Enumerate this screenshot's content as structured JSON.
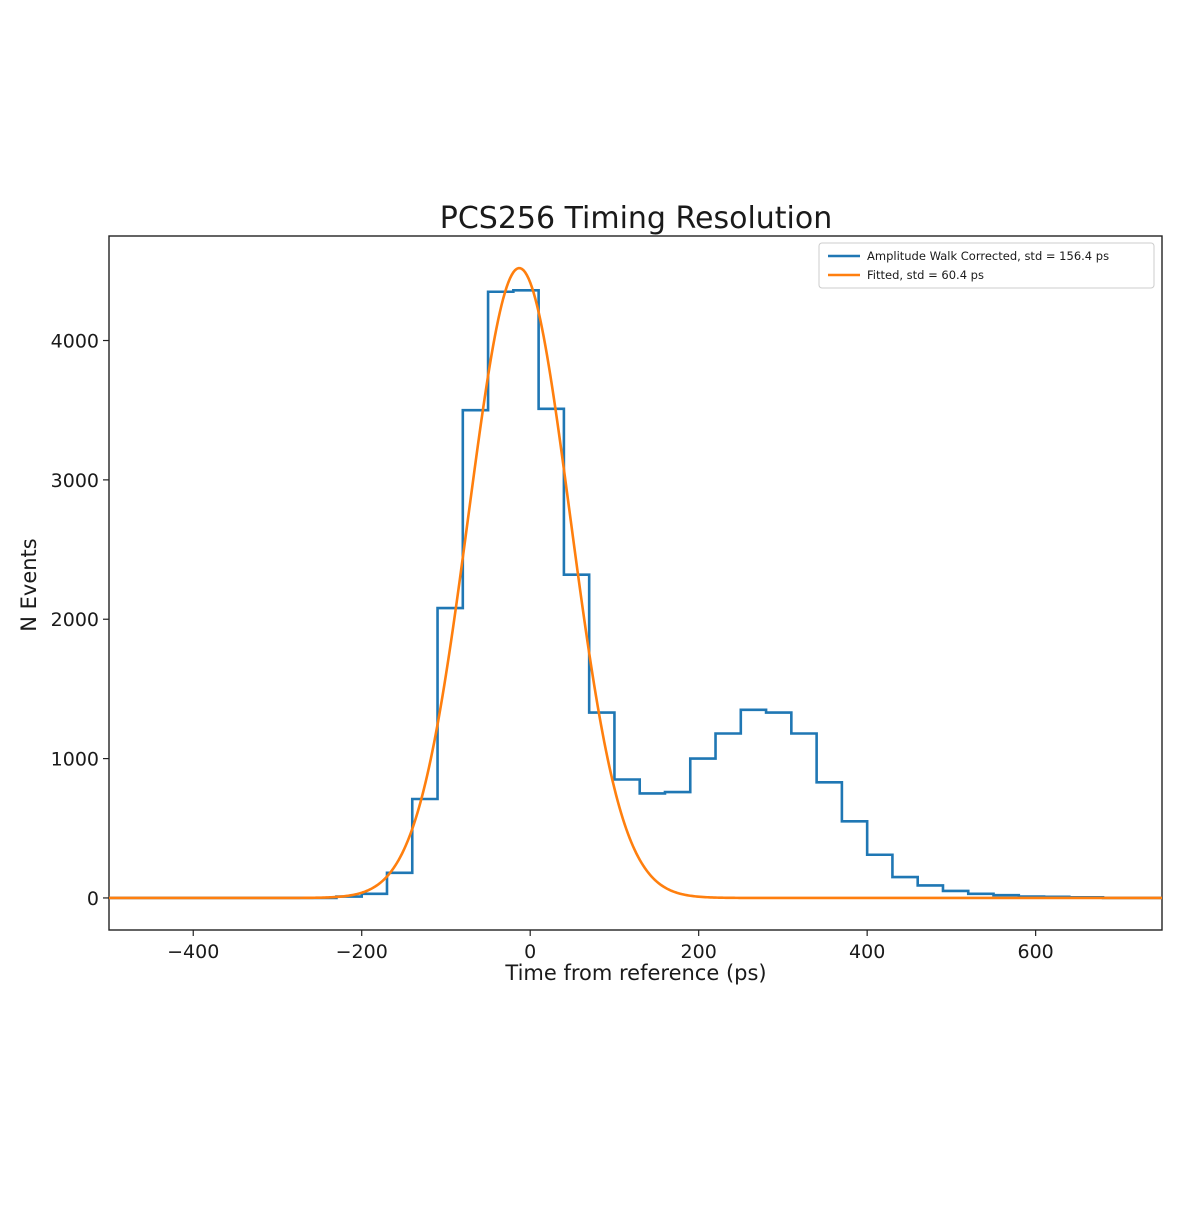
{
  "chart_data": {
    "type": "line",
    "title": "PCS256 Timing Resolution",
    "xlabel": "Time from reference (ps)",
    "ylabel": "N Events",
    "xlim": [
      -500,
      750
    ],
    "ylim": [
      -230,
      4750
    ],
    "xticks": [
      -400,
      -200,
      0,
      200,
      400,
      600
    ],
    "xtick_labels": [
      "−400",
      "−200",
      "0",
      "200",
      "400",
      "600"
    ],
    "yticks": [
      0,
      1000,
      2000,
      3000,
      4000
    ],
    "ytick_labels": [
      "0",
      "1000",
      "2000",
      "3000",
      "4000"
    ],
    "grid": false,
    "legend_position": "top-right",
    "series": [
      {
        "name": "Amplitude Walk Corrected, std = 156.4 ps",
        "kind": "step-histogram",
        "color": "#1f77b4",
        "bin_edges": [
          -500,
          -230,
          -200,
          -170,
          -140,
          -110,
          -80,
          -50,
          -20,
          10,
          40,
          70,
          100,
          130,
          160,
          190,
          220,
          250,
          280,
          310,
          340,
          370,
          400,
          430,
          460,
          490,
          520,
          550,
          580,
          610,
          640,
          680,
          750
        ],
        "counts": [
          0,
          10,
          30,
          180,
          710,
          2080,
          3500,
          4350,
          4360,
          3510,
          2320,
          1330,
          850,
          750,
          760,
          1000,
          1180,
          1350,
          1330,
          1180,
          830,
          550,
          310,
          150,
          90,
          50,
          30,
          20,
          10,
          8,
          5,
          0
        ]
      },
      {
        "name": "Fitted, std = 60.4 ps",
        "kind": "gaussian",
        "color": "#ff7f0e",
        "amplitude": 4520,
        "mean": -13,
        "std": 60.4
      }
    ]
  }
}
